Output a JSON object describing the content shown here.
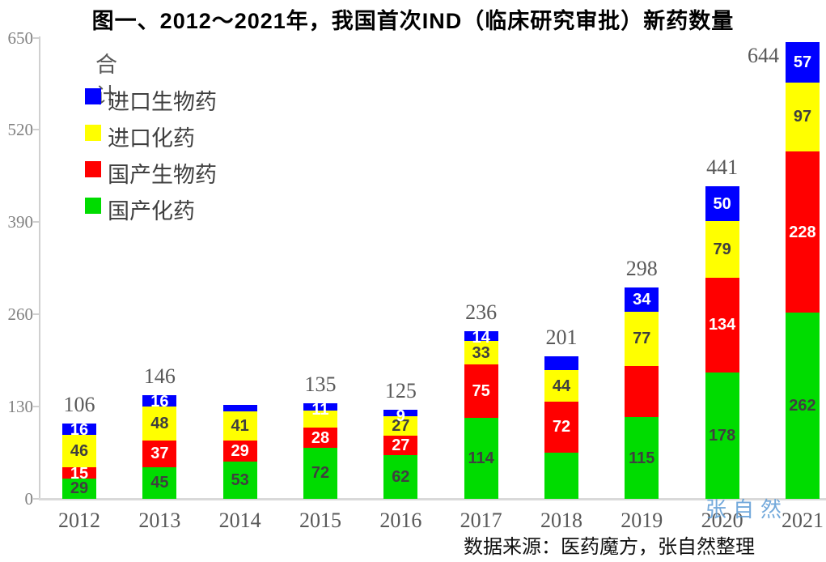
{
  "title": "图一、2012～2021年，我国首次IND（临床研究审批）新药数量",
  "legend": {
    "total_label": "合计",
    "items": [
      {
        "label": "进口生物药",
        "color": "#0000ff"
      },
      {
        "label": "进口化药",
        "color": "#ffff00"
      },
      {
        "label": "国产生物药",
        "color": "#ff0000"
      },
      {
        "label": "国产化药",
        "color": "#00dc00"
      }
    ]
  },
  "source_note": "数据来源：医药魔方，张自然整理",
  "watermark": "张自然",
  "colors": {
    "axis": "#d0d0d0",
    "tick_label": "#808080",
    "gray_text": "#595959",
    "watermark_blue": "#5b9bd5"
  },
  "chart_data": {
    "type": "bar",
    "stacked": true,
    "title": "图一、2012～2021年，我国首次IND（临床研究审批）新药数量",
    "categories": [
      "2012",
      "2013",
      "2014",
      "2015",
      "2016",
      "2017",
      "2018",
      "2019",
      "2020",
      "2021"
    ],
    "series": [
      {
        "name": "国产化药",
        "color": "#00dc00",
        "label_color": "#3f3f3f",
        "values": [
          29,
          45,
          53,
          72,
          62,
          114,
          65,
          115,
          178,
          262
        ],
        "labels": [
          "29",
          "45",
          "53",
          "72",
          "62",
          "114",
          "",
          "115",
          "178",
          "262"
        ]
      },
      {
        "name": "国产生物药",
        "color": "#ff0000",
        "label_color": "#ffffff",
        "values": [
          15,
          37,
          29,
          28,
          27,
          75,
          72,
          72,
          134,
          228
        ],
        "labels": [
          "15",
          "37",
          "29",
          "28",
          "27",
          "75",
          "72",
          "",
          "134",
          "228"
        ]
      },
      {
        "name": "进口化药",
        "color": "#ffff00",
        "label_color": "#3f3f3f",
        "values": [
          46,
          48,
          41,
          24,
          27,
          33,
          44,
          77,
          79,
          97
        ],
        "labels": [
          "46",
          "48",
          "41",
          "",
          "27",
          "33",
          "44",
          "77",
          "79",
          "97"
        ]
      },
      {
        "name": "进口生物药",
        "color": "#0000ff",
        "label_color": "#ffffff",
        "values": [
          16,
          16,
          9,
          11,
          9,
          14,
          20,
          34,
          50,
          57
        ],
        "labels": [
          "16",
          "16",
          "",
          "11",
          "9",
          "14",
          "",
          "34",
          "50",
          "57"
        ]
      }
    ],
    "totals": [
      106,
      146,
      132,
      135,
      125,
      236,
      201,
      298,
      441,
      644
    ],
    "total_labels": [
      "106",
      "146",
      "",
      "135",
      "125",
      "236",
      "201",
      "298",
      "441",
      "644"
    ],
    "yticks": [
      0,
      130,
      260,
      390,
      520,
      650
    ],
    "ylim": [
      0,
      650
    ],
    "grid": false,
    "legend_position": "top-left",
    "xlabel": "",
    "ylabel": ""
  }
}
